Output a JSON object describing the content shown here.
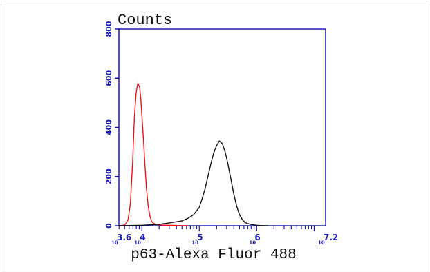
{
  "chart_data": {
    "type": "line",
    "ylabel": "Counts",
    "xlabel": "p63-Alexa Fluor 488",
    "x_scale": "log",
    "xlim": [
      3.6,
      7.2
    ],
    "ylim": [
      0,
      800
    ],
    "y_ticks": [
      {
        "value": 0,
        "label": "0"
      },
      {
        "value": 200,
        "label": "200"
      },
      {
        "value": 400,
        "label": "400"
      },
      {
        "value": 600,
        "label": "600"
      },
      {
        "value": 800,
        "label": "800"
      }
    ],
    "x_ticks": [
      {
        "value": 3.6,
        "base": "10",
        "exp": "3.6"
      },
      {
        "value": 4,
        "base": "10",
        "exp": "4"
      },
      {
        "value": 5,
        "base": "10",
        "exp": "5"
      },
      {
        "value": 6,
        "base": "10",
        "exp": "6"
      },
      {
        "value": 7.2,
        "base": "10",
        "exp": "7.2"
      }
    ],
    "series": [
      {
        "color": "#e8161b",
        "x": [
          3.6,
          3.68,
          3.72,
          3.76,
          3.8,
          3.84,
          3.87,
          3.9,
          3.93,
          3.96,
          3.98,
          4.0,
          4.02,
          4.05,
          4.08,
          4.11,
          4.14,
          4.17,
          4.2,
          4.24,
          4.28,
          4.34,
          4.42,
          4.5,
          4.6,
          4.7,
          4.8
        ],
        "y": [
          0,
          2,
          8,
          25,
          90,
          260,
          440,
          540,
          580,
          565,
          520,
          450,
          380,
          260,
          150,
          80,
          40,
          18,
          10,
          6,
          4,
          3,
          2,
          2,
          1,
          0,
          0
        ]
      },
      {
        "color": "#111111",
        "x": [
          3.6,
          4.0,
          4.3,
          4.5,
          4.7,
          4.8,
          4.9,
          5.0,
          5.05,
          5.1,
          5.15,
          5.2,
          5.25,
          5.3,
          5.35,
          5.4,
          5.45,
          5.5,
          5.55,
          5.6,
          5.65,
          5.7,
          5.75,
          5.8,
          5.9,
          6.0,
          6.1,
          6.2
        ],
        "y": [
          0,
          2,
          6,
          12,
          20,
          30,
          45,
          75,
          110,
          150,
          200,
          250,
          295,
          325,
          345,
          335,
          300,
          250,
          190,
          130,
          80,
          45,
          25,
          12,
          5,
          2,
          0,
          0
        ]
      }
    ]
  }
}
